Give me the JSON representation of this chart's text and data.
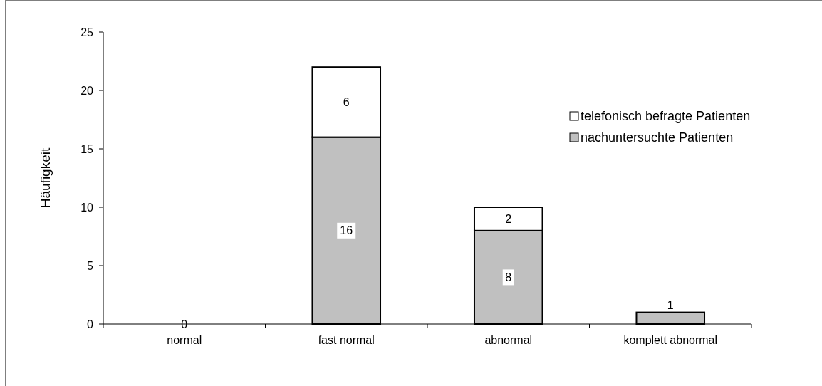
{
  "chart_data": {
    "type": "bar",
    "stacked": true,
    "ylabel": "Häufigkeit",
    "categories": [
      "normal",
      "fast normal",
      "abnormal",
      "komplett abnormal"
    ],
    "series": [
      {
        "name": "nachuntersuchte Patienten",
        "color": "#c0c0c0",
        "values": [
          0,
          16,
          8,
          1
        ],
        "value_labels": [
          "0",
          "16",
          "8",
          "1"
        ]
      },
      {
        "name": "telefonisch befragte Patienten",
        "color": "#ffffff",
        "values": [
          0,
          6,
          2,
          0
        ],
        "value_labels": [
          null,
          "6",
          "2",
          null
        ]
      }
    ],
    "ylim": [
      0,
      25
    ],
    "yticks": [
      0,
      5,
      10,
      15,
      20,
      25
    ],
    "grid": false,
    "legend": "top right"
  }
}
